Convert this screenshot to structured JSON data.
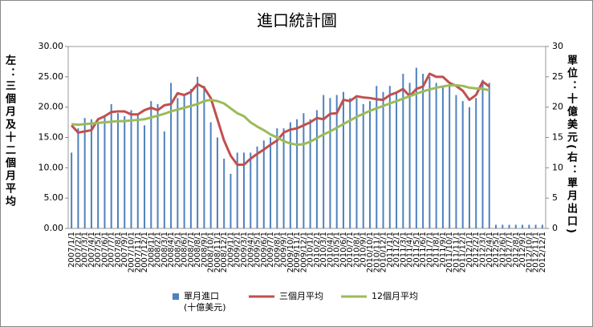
{
  "chart_data": {
    "type": "bar-line",
    "title": "進口統計圖",
    "y_label": "左：三個月及十二個月平均",
    "y2_label": "單位：十億美元(右：單月出口)",
    "categories": [
      "2007/1/1",
      "2007/2/1",
      "2007/3/1",
      "2007/4/1",
      "2007/5/1",
      "2007/6/1",
      "2007/7/1",
      "2007/8/1",
      "2007/9/1",
      "2007/10/1",
      "2007/11/1",
      "2007/12/1",
      "2008/1/1",
      "2008/2/1",
      "2008/3/1",
      "2008/4/1",
      "2008/5/1",
      "2008/6/1",
      "2008/7/1",
      "2008/8/1",
      "2008/9/1",
      "2008/10/1",
      "2008/11/1",
      "2008/12/1",
      "2009/1/1",
      "2009/2/1",
      "2009/3/1",
      "2009/4/1",
      "2009/5/1",
      "2009/6/1",
      "2009/7/1",
      "2009/8/1",
      "2009/9/1",
      "2009/10/1",
      "2009/11/1",
      "2009/12/1",
      "2010/1/1",
      "2010/2/1",
      "2010/3/1",
      "2010/4/1",
      "2010/5/1",
      "2010/6/1",
      "2010/7/1",
      "2010/8/1",
      "2010/9/1",
      "2010/10/1",
      "2010/11/1",
      "2010/12/1",
      "2011/1/1",
      "2011/2/1",
      "2011/3/1",
      "2011/4/1",
      "2011/5/1",
      "2011/6/1",
      "2011/7/1",
      "2011/8/1",
      "2011/9/1",
      "2011/10/1",
      "2011/11/1",
      "2011/12/1",
      "2012/1/1",
      "2012/2/1",
      "2012/3/1",
      "2012/4/1",
      "2012/5/1",
      "2012/6/1",
      "2012/7/1",
      "2012/8/1",
      "2012/9/1",
      "2012/10/1",
      "2012/11/1",
      "2012/12/1"
    ],
    "series": [
      {
        "name": "單月進口\n(十億美元)",
        "type": "bar",
        "axis": "y2",
        "color": "#4f81bd",
        "values": [
          12.5,
          16.5,
          18.2,
          18,
          17.5,
          18.5,
          20.5,
          19,
          18.5,
          19.5,
          18.8,
          17,
          21,
          20.5,
          16,
          24,
          21.5,
          22,
          23,
          25,
          23.5,
          17.5,
          15,
          11.5,
          9,
          12.5,
          12.5,
          12.5,
          13.5,
          14.5,
          15,
          16.5,
          16.5,
          17.5,
          18,
          19,
          18,
          19.5,
          22,
          21.5,
          22,
          22.5,
          21.5,
          21.5,
          20.5,
          21,
          23.5,
          22.5,
          23.5,
          22.5,
          25.5,
          24,
          26.5,
          25.5,
          25,
          24,
          23.5,
          23.5,
          22,
          21,
          20,
          21.5,
          24.5,
          24,
          0.6,
          0.6,
          0.6,
          0.6,
          0.6,
          0.6,
          0.6,
          0.6
        ]
      },
      {
        "name": "三個月平均",
        "type": "line",
        "color": "#c0504d",
        "values": [
          17,
          15.8,
          16,
          16.2,
          18,
          18.5,
          19.2,
          19.3,
          19.3,
          18.8,
          18.8,
          19.5,
          19.9,
          19.5,
          20.3,
          20.5,
          22.3,
          22,
          22.5,
          23.8,
          23.2,
          21.5,
          18,
          14.5,
          12,
          10.5,
          10.5,
          11.5,
          12.3,
          13,
          13.8,
          14.5,
          15.8,
          16.3,
          16.5,
          17,
          17.5,
          18.2,
          18,
          18.9,
          19,
          21.2,
          21,
          21.8,
          21.6,
          21.5,
          21.3,
          21.2,
          22,
          22.4,
          23,
          21.8,
          23,
          23.4,
          25.5,
          25,
          25,
          24,
          23.5,
          22.7,
          21.2,
          22,
          24.2,
          23.4,
          null,
          null,
          null,
          null,
          null,
          null,
          null,
          null
        ]
      },
      {
        "name": "12個月平均",
        "type": "line",
        "color": "#9bbb59",
        "values": [
          17.2,
          17.1,
          17.2,
          17.3,
          17.4,
          17.5,
          17.6,
          17.7,
          17.7,
          17.8,
          17.9,
          18,
          18.3,
          18.6,
          18.9,
          19.3,
          19.6,
          19.9,
          20.2,
          20.5,
          21,
          21.2,
          21,
          20.6,
          19.8,
          19,
          18.5,
          17.5,
          16.8,
          16.2,
          15.5,
          15,
          14.4,
          14,
          13.8,
          13.9,
          14.3,
          14.9,
          15.5,
          16,
          16.6,
          17.2,
          17.8,
          18.4,
          18.9,
          19.4,
          19.8,
          20.2,
          20.6,
          21,
          21.4,
          21.8,
          22.2,
          22.6,
          22.9,
          23.2,
          23.4,
          23.6,
          23.6,
          23.5,
          23.2,
          23.1,
          23,
          22.8,
          null,
          null,
          null,
          null,
          null,
          null,
          null,
          null
        ]
      }
    ],
    "ylim": [
      0,
      30
    ],
    "yticks": [
      {
        "value": 0,
        "label": "0.00"
      },
      {
        "value": 5,
        "label": "5.00"
      },
      {
        "value": 10,
        "label": "10.00"
      },
      {
        "value": 15,
        "label": "15.00"
      },
      {
        "value": 20,
        "label": "20.00"
      },
      {
        "value": 25,
        "label": "25.00"
      },
      {
        "value": 30,
        "label": "30.00"
      }
    ],
    "y2lim": [
      0,
      30
    ],
    "y2ticks": [
      0,
      5,
      10,
      15,
      20,
      25,
      30
    ],
    "legend": "bottom"
  }
}
